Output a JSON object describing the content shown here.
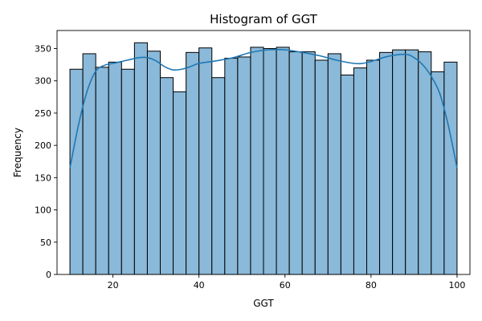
{
  "chart_data": {
    "type": "bar",
    "title": "Histogram of GGT",
    "xlabel": "GGT",
    "ylabel": "Frequency",
    "xlim": [
      7,
      103
    ],
    "ylim": [
      0,
      378
    ],
    "xticks": [
      20,
      40,
      60,
      80,
      100
    ],
    "yticks": [
      0,
      50,
      100,
      150,
      200,
      250,
      300,
      350
    ],
    "bins": {
      "start": 10,
      "end": 100,
      "count": 30,
      "values": [
        318,
        342,
        321,
        329,
        318,
        359,
        346,
        305,
        283,
        344,
        351,
        305,
        335,
        337,
        352,
        350,
        352,
        345,
        345,
        332,
        342,
        309,
        320,
        332,
        344,
        348,
        348,
        345,
        314,
        329
      ]
    },
    "kde": {
      "x": [
        10,
        12,
        14,
        16,
        18,
        20,
        22,
        24,
        26,
        28,
        30,
        32,
        34,
        36,
        38,
        40,
        44,
        48,
        52,
        56,
        60,
        64,
        68,
        72,
        76,
        78,
        80,
        84,
        88,
        90,
        92,
        94,
        96,
        98,
        100
      ],
      "y": [
        165,
        232,
        284,
        315,
        324,
        327,
        330,
        333,
        336,
        336,
        331,
        322,
        317,
        318,
        322,
        327,
        331,
        336,
        344,
        348,
        348,
        344,
        339,
        332,
        327,
        327,
        330,
        338,
        341,
        336,
        325,
        307,
        280,
        230,
        165
      ]
    }
  }
}
